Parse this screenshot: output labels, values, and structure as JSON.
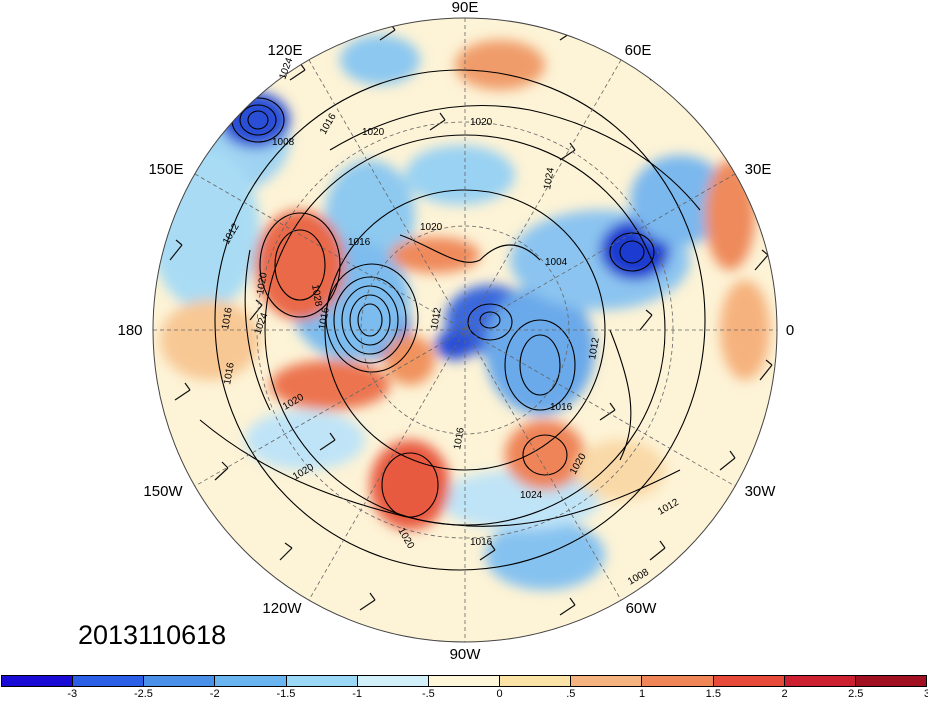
{
  "timestamp": "2013110618",
  "longitude_labels": {
    "90E": "90E",
    "60E": "60E",
    "30E": "30E",
    "0": "0",
    "30W": "30W",
    "60W": "60W",
    "90W": "90W",
    "120W": "120W",
    "150W": "150W",
    "180": "180",
    "150E": "150E",
    "120E": "120E"
  },
  "contour_labels": [
    "1024",
    "1008",
    "1016",
    "1020",
    "1020",
    "1012",
    "1024",
    "1016",
    "1028",
    "1020",
    "1024",
    "1016",
    "1020",
    "1012",
    "1016",
    "1020",
    "1016",
    "1004",
    "1012",
    "1016",
    "1016",
    "1024",
    "1020",
    "1020",
    "1012",
    "1016",
    "1008",
    "1020"
  ],
  "colorbar": {
    "colors": [
      "#1a0ad6",
      "#2a5fe6",
      "#4a8fe8",
      "#6ab5f0",
      "#9ad8f5",
      "#d2f0fa",
      "#fdf6d8",
      "#fbe3a8",
      "#f5b47f",
      "#f08658",
      "#e84a3a",
      "#cc2030",
      "#a01020"
    ],
    "labels": [
      "-3",
      "-2.5",
      "-2",
      "-1.5",
      "-1",
      "-.5",
      "0",
      ".5",
      "1",
      "1.5",
      "2",
      "2.5",
      "3"
    ]
  }
}
